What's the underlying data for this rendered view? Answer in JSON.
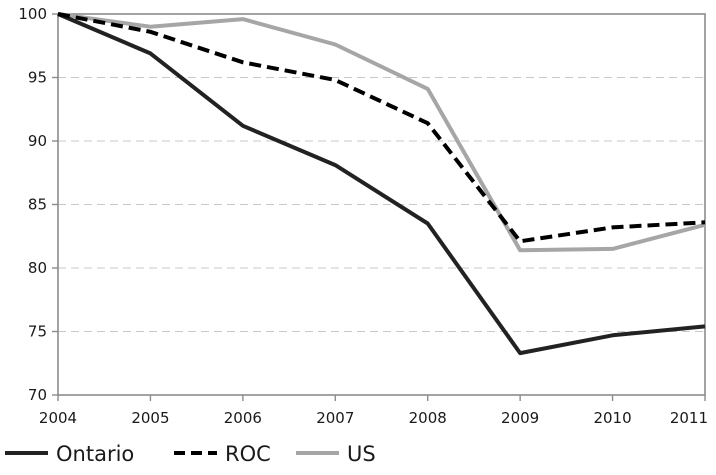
{
  "chart_data": {
    "type": "line",
    "x": [
      "2004",
      "2005",
      "2006",
      "2007",
      "2008",
      "2009",
      "2010",
      "2011"
    ],
    "ylim": [
      70,
      100
    ],
    "yticks": [
      70,
      75,
      80,
      85,
      90,
      95,
      100
    ],
    "grid": {
      "horizontal": true,
      "style": "dashed"
    },
    "legend_position": "bottom-left",
    "series": [
      {
        "name": "Ontario",
        "color": "#222222",
        "style": "solid",
        "values": [
          100,
          96.9,
          91.2,
          88.1,
          83.5,
          73.3,
          74.7,
          75.4
        ]
      },
      {
        "name": "ROC",
        "color": "#000000",
        "style": "dashed",
        "values": [
          100,
          98.6,
          96.2,
          94.8,
          91.4,
          82.1,
          83.2,
          83.6
        ]
      },
      {
        "name": "US",
        "color": "#a6a6a6",
        "style": "solid",
        "values": [
          100,
          99.0,
          99.6,
          97.6,
          94.1,
          81.4,
          81.5,
          83.4
        ]
      }
    ]
  }
}
